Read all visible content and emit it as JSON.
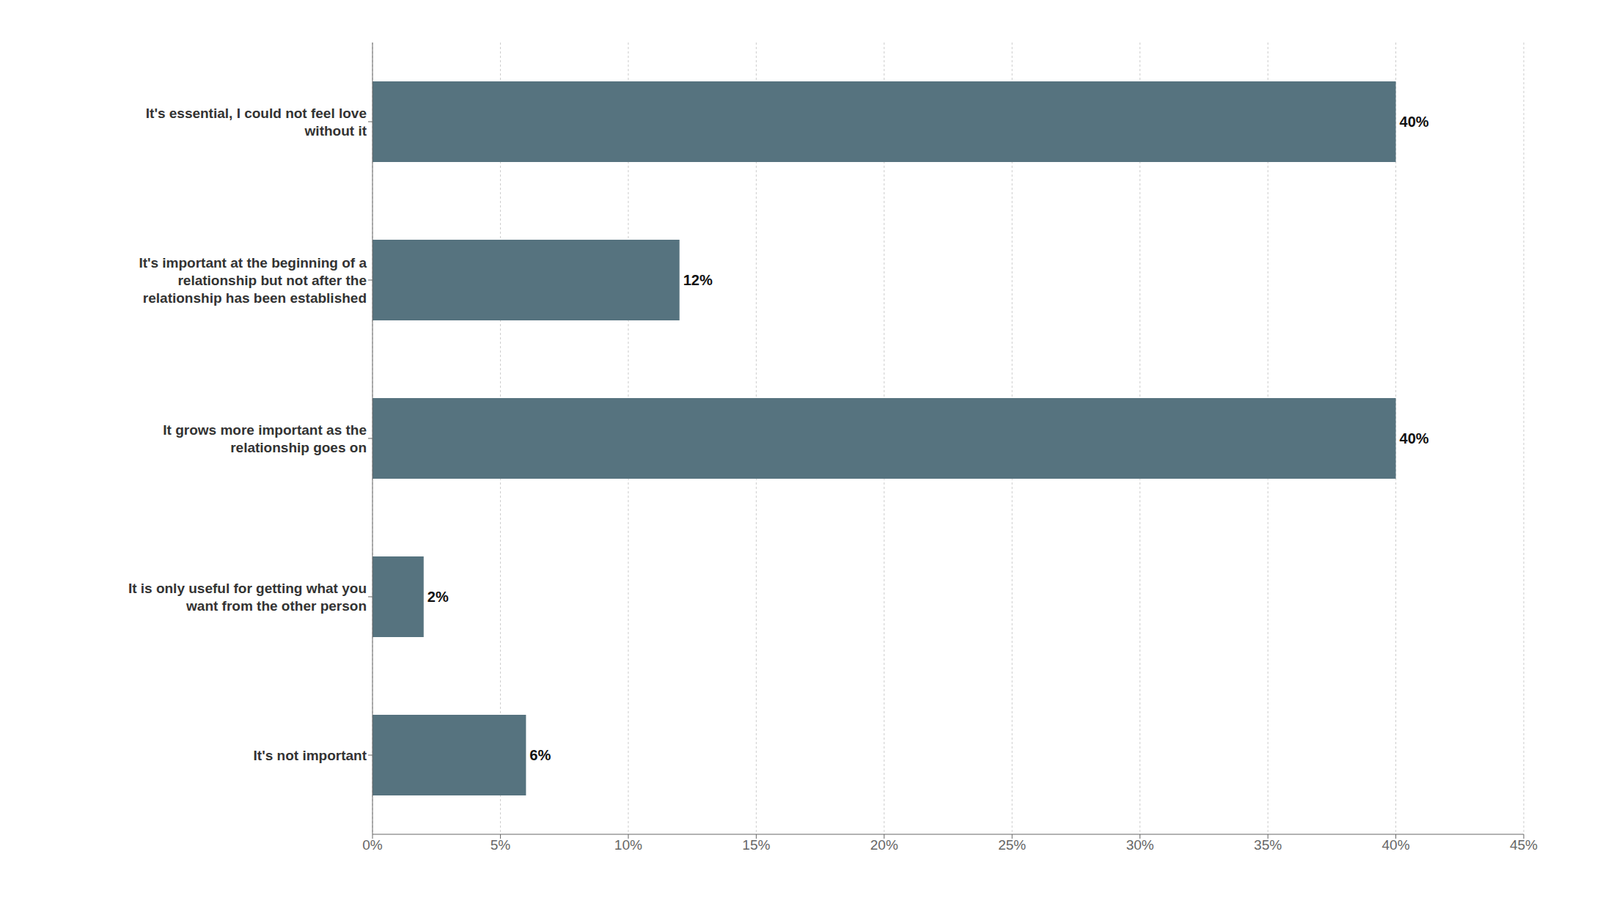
{
  "chart_data": {
    "type": "bar",
    "orientation": "horizontal",
    "categories": [
      "It's essential, I could not feel love\nwithout it",
      "It's important at the beginning of a\nrelationship but not after the\nrelationship has been established",
      "It grows more important as the\nrelationship goes on",
      "It is only useful for getting what you\nwant from the other person",
      "It's not important"
    ],
    "values": [
      40,
      12,
      40,
      2,
      6
    ],
    "value_labels": [
      "40%",
      "12%",
      "40%",
      "2%",
      "6%"
    ],
    "color": "#56737f",
    "xlim": [
      0,
      45
    ],
    "xticks": [
      {
        "value": 0,
        "label": "0%"
      },
      {
        "value": 5,
        "label": "5%"
      },
      {
        "value": 10,
        "label": "10%"
      },
      {
        "value": 15,
        "label": "15%"
      },
      {
        "value": 20,
        "label": "20%"
      },
      {
        "value": 25,
        "label": "25%"
      },
      {
        "value": 30,
        "label": "30%"
      },
      {
        "value": 35,
        "label": "35%"
      },
      {
        "value": 40,
        "label": "40%"
      },
      {
        "value": 45,
        "label": "45%"
      }
    ],
    "grid": true,
    "data_labels": true
  }
}
